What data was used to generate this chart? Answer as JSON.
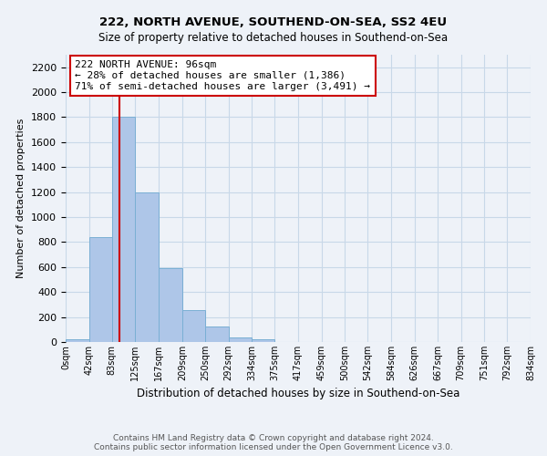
{
  "title": "222, NORTH AVENUE, SOUTHEND-ON-SEA, SS2 4EU",
  "subtitle": "Size of property relative to detached houses in Southend-on-Sea",
  "xlabel": "Distribution of detached houses by size in Southend-on-Sea",
  "ylabel": "Number of detached properties",
  "footer_line1": "Contains HM Land Registry data © Crown copyright and database right 2024.",
  "footer_line2": "Contains public sector information licensed under the Open Government Licence v3.0.",
  "bin_edges": [
    0,
    42,
    83,
    125,
    167,
    209,
    250,
    292,
    334,
    375,
    417,
    459,
    500,
    542,
    584,
    626,
    667,
    709,
    751,
    792,
    834
  ],
  "bin_labels": [
    "0sqm",
    "42sqm",
    "83sqm",
    "125sqm",
    "167sqm",
    "209sqm",
    "250sqm",
    "292sqm",
    "334sqm",
    "375sqm",
    "417sqm",
    "459sqm",
    "500sqm",
    "542sqm",
    "584sqm",
    "626sqm",
    "667sqm",
    "709sqm",
    "751sqm",
    "792sqm",
    "834sqm"
  ],
  "bar_heights": [
    25,
    840,
    1800,
    1200,
    590,
    255,
    125,
    40,
    25,
    0,
    0,
    0,
    0,
    0,
    0,
    0,
    0,
    0,
    0,
    0
  ],
  "bar_color": "#aec6e8",
  "bar_edge_color": "#7aafd4",
  "property_line_x": 96,
  "property_line_color": "#cc0000",
  "ylim": [
    0,
    2300
  ],
  "yticks": [
    0,
    200,
    400,
    600,
    800,
    1000,
    1200,
    1400,
    1600,
    1800,
    2000,
    2200
  ],
  "annotation_title": "222 NORTH AVENUE: 96sqm",
  "annotation_line1": "← 28% of detached houses are smaller (1,386)",
  "annotation_line2": "71% of semi-detached houses are larger (3,491) →",
  "annotation_box_color": "#ffffff",
  "annotation_box_edge": "#cc0000",
  "grid_color": "#c8d8e8",
  "background_color": "#eef2f8",
  "title_fontsize": 9.5,
  "subtitle_fontsize": 8.5
}
